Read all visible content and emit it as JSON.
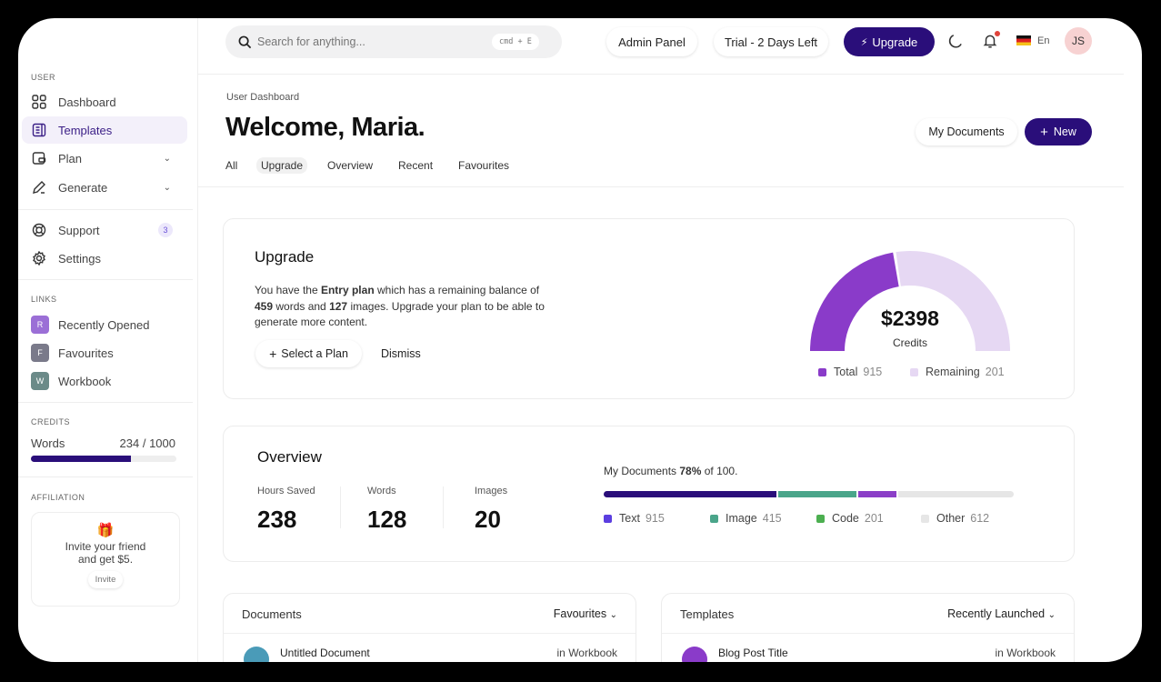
{
  "search": {
    "placeholder": "Search for anything...",
    "shortcut": "cmd + E"
  },
  "header": {
    "admin": "Admin Panel",
    "trial": "Trial - 2 Days Left",
    "upgrade": "Upgrade",
    "lang": "En",
    "avatar": "JS"
  },
  "sidebar": {
    "user_label": "USER",
    "items": [
      {
        "label": "Dashboard"
      },
      {
        "label": "Templates"
      },
      {
        "label": "Plan"
      },
      {
        "label": "Generate"
      },
      {
        "label": "Support",
        "badge": "3"
      },
      {
        "label": "Settings"
      }
    ],
    "links_label": "LINKS",
    "links": [
      {
        "initial": "R",
        "label": "Recently Opened",
        "color": "#9b6fd6"
      },
      {
        "initial": "F",
        "label": "Favourites",
        "color": "#7a7a8a"
      },
      {
        "initial": "W",
        "label": "Workbook",
        "color": "#6b8a88"
      }
    ],
    "credits_label": "CREDITS",
    "credits": {
      "label": "Words",
      "value": "234 / 1000",
      "fraction": 0.69
    },
    "affiliation_label": "AFFILIATION",
    "invite": {
      "text1": "Invite your friend",
      "text2": "and get $5.",
      "button": "Invite"
    }
  },
  "page": {
    "breadcrumb": "User Dashboard",
    "title": "Welcome, Maria.",
    "my_documents": "My Documents",
    "new": "New",
    "tabs": [
      "All",
      "Upgrade",
      "Overview",
      "Recent",
      "Favourites"
    ],
    "active_tab": 1
  },
  "upgrade": {
    "title": "Upgrade",
    "p1": "You have the ",
    "plan": "Entry plan",
    "p2": " which has a remaining balance of",
    "words": "459",
    "p3": " words and ",
    "images": "127",
    "p4": " images. Upgrade your plan to be able to",
    "p5": "generate more content.",
    "select": "Select a Plan",
    "dismiss": "Dismiss",
    "gauge": {
      "amount": "$2398",
      "label": "Credits",
      "filled_fraction": 0.45,
      "colors": {
        "total": "#8a3bc9",
        "remaining": "#e6d8f3"
      },
      "legend": [
        {
          "label": "Total",
          "value": "915"
        },
        {
          "label": "Remaining",
          "value": "201"
        }
      ]
    }
  },
  "overview": {
    "title": "Overview",
    "stats": [
      {
        "label": "Hours Saved",
        "value": "238"
      },
      {
        "label": "Words",
        "value": "128"
      },
      {
        "label": "Images",
        "value": "20"
      }
    ],
    "docs_pre": "My Documents ",
    "docs_pct": "78%",
    "docs_post": " of 100.",
    "segments": [
      {
        "label": "Text",
        "value": "915",
        "bar": "#2a0e7a",
        "swatch": "#5b3ee0"
      },
      {
        "label": "Image",
        "value": "415",
        "bar": "#4aa58a",
        "swatch": "#4aa58a"
      },
      {
        "label": "Code",
        "value": "201",
        "bar": "#8b3fc7",
        "swatch": "#4caf50"
      },
      {
        "label": "Other",
        "value": "612",
        "bar": "#e6e6e6",
        "swatch": "#e6e6e6"
      }
    ]
  },
  "documents": {
    "title": "Documents",
    "filter": "Favourites",
    "row": {
      "name": "Untitled Document",
      "where": "in Workbook"
    }
  },
  "templates": {
    "title": "Templates",
    "filter": "Recently Launched",
    "row": {
      "name": "Blog Post Title",
      "where": "in Workbook"
    }
  }
}
